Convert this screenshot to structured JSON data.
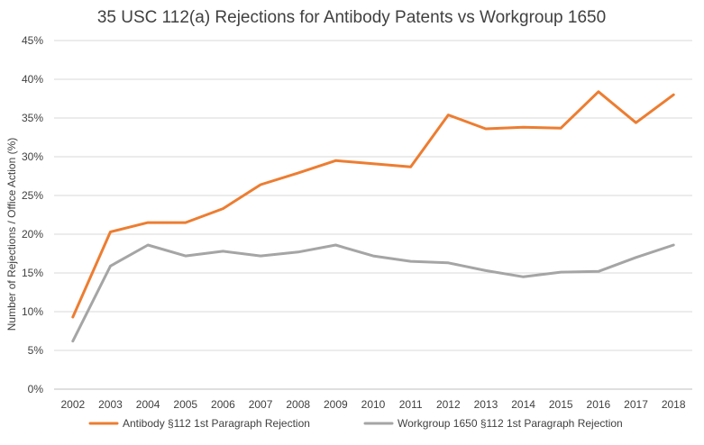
{
  "chart_data": {
    "type": "line",
    "title": "35 USC 112(a) Rejections for Antibody Patents vs Workgroup 1650",
    "xlabel": "",
    "ylabel": "Number of Rejections / Office Action (%)",
    "x": [
      "2002",
      "2003",
      "2004",
      "2005",
      "2006",
      "2007",
      "2008",
      "2009",
      "2010",
      "2011",
      "2012",
      "2013",
      "2014",
      "2015",
      "2016",
      "2017",
      "2018"
    ],
    "y_ticks": [
      "0%",
      "5%",
      "10%",
      "15%",
      "20%",
      "25%",
      "30%",
      "35%",
      "40%",
      "45%"
    ],
    "ylim": [
      0,
      45
    ],
    "grid": true,
    "legend_position": "bottom",
    "series": [
      {
        "name": "Antibody  §112 1st Paragraph Rejection",
        "color": "#ed7d31",
        "values": [
          9.3,
          20.3,
          21.5,
          21.5,
          23.3,
          26.4,
          27.9,
          29.5,
          29.1,
          28.7,
          35.4,
          33.6,
          33.8,
          33.7,
          38.4,
          34.4,
          38.0
        ]
      },
      {
        "name": "Workgroup 1650 §112 1st Paragraph Rejection",
        "color": "#a5a5a5",
        "values": [
          6.2,
          15.9,
          18.6,
          17.2,
          17.8,
          17.2,
          17.7,
          18.6,
          17.2,
          16.5,
          16.3,
          15.3,
          14.5,
          15.1,
          15.2,
          17.0,
          18.6
        ]
      }
    ]
  }
}
